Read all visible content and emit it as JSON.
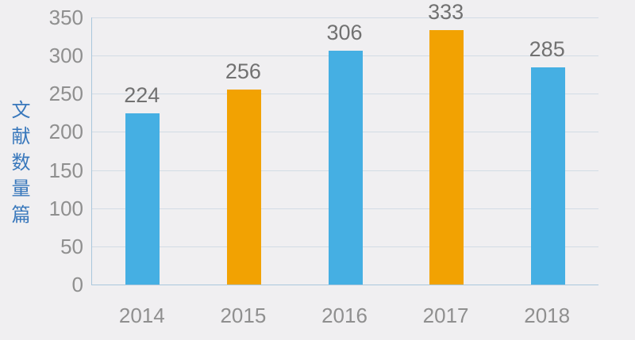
{
  "chart_data": {
    "type": "bar",
    "categories": [
      "2014",
      "2015",
      "2016",
      "2017",
      "2018"
    ],
    "values": [
      224,
      256,
      306,
      333,
      285
    ],
    "series": [
      {
        "name": "文献数量",
        "values": [
          224,
          256,
          306,
          333,
          285
        ]
      }
    ],
    "bar_colors": [
      "#45AFE3",
      "#F2A202",
      "#45AFE3",
      "#F2A202",
      "#45AFE3"
    ],
    "data_labels": [
      "224",
      "256",
      "306",
      "333",
      "285"
    ],
    "title": "",
    "xlabel": "",
    "ylabel": "文献数量篇",
    "ylim": [
      0,
      350
    ],
    "yticks": [
      0,
      50,
      100,
      150,
      200,
      250,
      300,
      350
    ],
    "grid": true,
    "legend_position": "none"
  },
  "colors": {
    "background": "#F0EFF1",
    "bar_blue": "#45AFE3",
    "bar_orange": "#F2A202",
    "gridline": "#D2DCE5",
    "axis_line": "#A9C7DC",
    "tick_label": "#8F8F8F",
    "data_label": "#717171",
    "y_title": "#3978BC"
  }
}
